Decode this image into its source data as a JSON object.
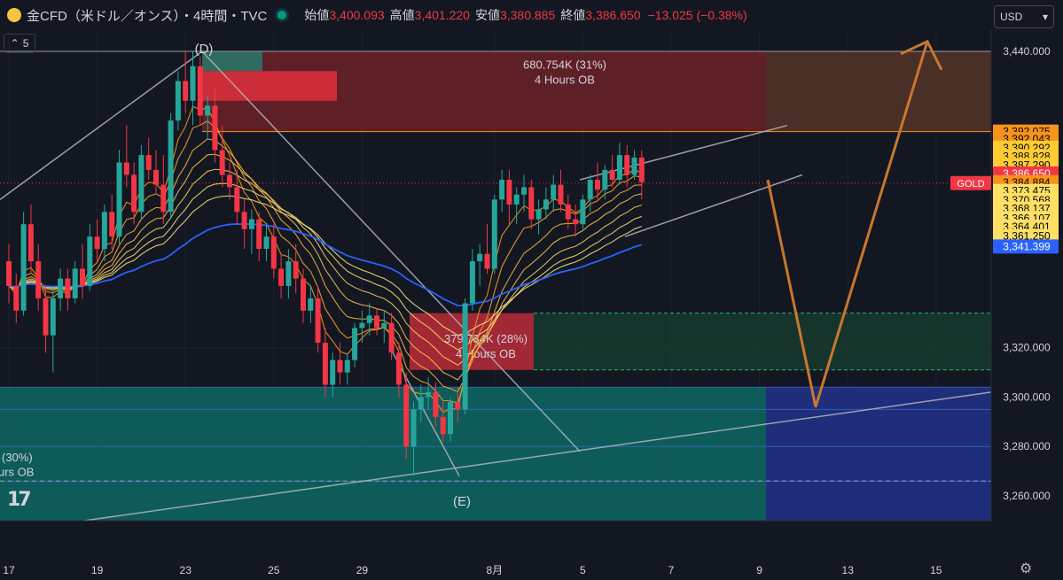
{
  "header": {
    "title": "金CFD（米ドル／オンス）・4時間・TVC",
    "open_label": "始値",
    "open": "3,400.093",
    "high_label": "高値",
    "high": "3,401.220",
    "low_label": "安値",
    "low": "3,380.885",
    "close_label": "終値",
    "close": "3,386.650",
    "change": "−13.025 (−0.38%)"
  },
  "currency_button": "USD",
  "indicator_collapse": "5",
  "symbol_tag": "GOLD",
  "colors": {
    "up": "#26a69a",
    "down": "#f23645",
    "background": "#131722",
    "grid": "#1e222d",
    "ma200": "#2962ff",
    "ema": "#f5c542",
    "projection": "#c8772d"
  },
  "chart_data": {
    "type": "candlestick",
    "timeframe": "4時間",
    "y_range": [
      3245,
      3452
    ],
    "y_ticks": [
      3440,
      3320,
      3300,
      3280,
      3260
    ],
    "x_ticks": [
      {
        "label": "17",
        "t": 0
      },
      {
        "label": "19",
        "t": 12
      },
      {
        "label": "23",
        "t": 24
      },
      {
        "label": "25",
        "t": 36
      },
      {
        "label": "29",
        "t": 48
      },
      {
        "label": "8月",
        "t": 66
      },
      {
        "label": "5",
        "t": 78
      },
      {
        "label": "7",
        "t": 90
      },
      {
        "label": "9",
        "t": 102
      },
      {
        "label": "13",
        "t": 114
      },
      {
        "label": "15",
        "t": 126
      }
    ],
    "price_labels": [
      {
        "text": "3,440.000",
        "price": 3440,
        "bg": "",
        "fg": "#d1d4dc"
      },
      {
        "text": "3,392.075",
        "price": 3407.5,
        "bg": "#f7931a",
        "fg": "#000000"
      },
      {
        "text": "3,392.043",
        "price": 3404.5,
        "bg": "#f7931a",
        "fg": "#000000"
      },
      {
        "text": "3,390.292",
        "price": 3401.0,
        "bg": "#ffcc33",
        "fg": "#000000"
      },
      {
        "text": "3,388.828",
        "price": 3397.5,
        "bg": "#ffcc33",
        "fg": "#000000"
      },
      {
        "text": "3,387.290",
        "price": 3394.0,
        "bg": "#ffcc33",
        "fg": "#000000"
      },
      {
        "text": "3,386.650",
        "price": 3390.5,
        "bg": "#f23645",
        "fg": "#ffffff"
      },
      {
        "text": "3,384.884",
        "price": 3387.0,
        "bg": "#f7931a",
        "fg": "#000000"
      },
      {
        "text": "3,373.475",
        "price": 3383.5,
        "bg": "#ffe066",
        "fg": "#000000"
      },
      {
        "text": "3,370.568",
        "price": 3379.8,
        "bg": "#ffe066",
        "fg": "#000000"
      },
      {
        "text": "3,368.137",
        "price": 3376.3,
        "bg": "#ffe066",
        "fg": "#000000"
      },
      {
        "text": "3,366.107",
        "price": 3372.5,
        "bg": "#ffe066",
        "fg": "#000000"
      },
      {
        "text": "3,364.401",
        "price": 3369.0,
        "bg": "#ffe066",
        "fg": "#000000"
      },
      {
        "text": "3,361.250",
        "price": 3365.2,
        "bg": "#ffe066",
        "fg": "#000000"
      },
      {
        "text": "3,341.399",
        "price": 3361.0,
        "bg": "#2962ff",
        "fg": "#ffffff"
      },
      {
        "text": "3,320.000",
        "price": 3320,
        "bg": "",
        "fg": "#d1d4dc"
      },
      {
        "text": "3,300.000",
        "price": 3300,
        "bg": "",
        "fg": "#d1d4dc"
      },
      {
        "text": "3,280.000",
        "price": 3280,
        "bg": "",
        "fg": "#d1d4dc"
      },
      {
        "text": "3,260.000",
        "price": 3260,
        "bg": "",
        "fg": "#d1d4dc"
      }
    ],
    "ohlc": [
      [
        3355,
        3362,
        3338,
        3345
      ],
      [
        3345,
        3350,
        3330,
        3335
      ],
      [
        3335,
        3375,
        3333,
        3370
      ],
      [
        3370,
        3378,
        3350,
        3355
      ],
      [
        3355,
        3362,
        3335,
        3340
      ],
      [
        3340,
        3345,
        3318,
        3325
      ],
      [
        3325,
        3345,
        3310,
        3340
      ],
      [
        3340,
        3352,
        3335,
        3348
      ],
      [
        3348,
        3352,
        3335,
        3340
      ],
      [
        3340,
        3355,
        3338,
        3352
      ],
      [
        3352,
        3362,
        3340,
        3345
      ],
      [
        3345,
        3370,
        3343,
        3365
      ],
      [
        3365,
        3372,
        3355,
        3360
      ],
      [
        3360,
        3378,
        3355,
        3375
      ],
      [
        3375,
        3382,
        3360,
        3365
      ],
      [
        3365,
        3400,
        3362,
        3395
      ],
      [
        3395,
        3410,
        3385,
        3390
      ],
      [
        3390,
        3395,
        3370,
        3375
      ],
      [
        3375,
        3402,
        3372,
        3398
      ],
      [
        3398,
        3405,
        3388,
        3392
      ],
      [
        3392,
        3400,
        3382,
        3386
      ],
      [
        3386,
        3398,
        3370,
        3375
      ],
      [
        3375,
        3415,
        3372,
        3412
      ],
      [
        3412,
        3432,
        3408,
        3428
      ],
      [
        3428,
        3440,
        3415,
        3420
      ],
      [
        3420,
        3440,
        3410,
        3434
      ],
      [
        3434,
        3438,
        3410,
        3414
      ],
      [
        3414,
        3422,
        3405,
        3418
      ],
      [
        3418,
        3425,
        3395,
        3400
      ],
      [
        3400,
        3410,
        3385,
        3390
      ],
      [
        3390,
        3395,
        3380,
        3385
      ],
      [
        3385,
        3392,
        3370,
        3375
      ],
      [
        3375,
        3380,
        3360,
        3368
      ],
      [
        3368,
        3376,
        3358,
        3372
      ],
      [
        3372,
        3375,
        3355,
        3360
      ],
      [
        3360,
        3370,
        3355,
        3365
      ],
      [
        3365,
        3370,
        3348,
        3352
      ],
      [
        3352,
        3358,
        3340,
        3345
      ],
      [
        3345,
        3360,
        3340,
        3355
      ],
      [
        3355,
        3362,
        3342,
        3348
      ],
      [
        3348,
        3352,
        3330,
        3335
      ],
      [
        3335,
        3345,
        3330,
        3340
      ],
      [
        3340,
        3345,
        3318,
        3322
      ],
      [
        3322,
        3328,
        3300,
        3305
      ],
      [
        3305,
        3318,
        3300,
        3315
      ],
      [
        3315,
        3322,
        3305,
        3310
      ],
      [
        3310,
        3318,
        3305,
        3315
      ],
      [
        3315,
        3330,
        3312,
        3328
      ],
      [
        3328,
        3335,
        3322,
        3330
      ],
      [
        3330,
        3338,
        3325,
        3333
      ],
      [
        3333,
        3336,
        3325,
        3328
      ],
      [
        3328,
        3335,
        3322,
        3330
      ],
      [
        3330,
        3334,
        3315,
        3318
      ],
      [
        3318,
        3322,
        3300,
        3305
      ],
      [
        3305,
        3310,
        3275,
        3280
      ],
      [
        3280,
        3298,
        3268,
        3295
      ],
      [
        3295,
        3305,
        3290,
        3300
      ],
      [
        3300,
        3308,
        3295,
        3302
      ],
      [
        3302,
        3306,
        3288,
        3292
      ],
      [
        3292,
        3298,
        3282,
        3285
      ],
      [
        3285,
        3300,
        3282,
        3298
      ],
      [
        3298,
        3304,
        3290,
        3295
      ],
      [
        3295,
        3340,
        3293,
        3338
      ],
      [
        3338,
        3360,
        3335,
        3355
      ],
      [
        3355,
        3362,
        3345,
        3358
      ],
      [
        3358,
        3370,
        3350,
        3352
      ],
      [
        3352,
        3382,
        3350,
        3380
      ],
      [
        3380,
        3392,
        3375,
        3388
      ],
      [
        3388,
        3392,
        3370,
        3378
      ],
      [
        3378,
        3385,
        3370,
        3382
      ],
      [
        3382,
        3390,
        3375,
        3385
      ],
      [
        3385,
        3388,
        3368,
        3372
      ],
      [
        3372,
        3380,
        3366,
        3376
      ],
      [
        3376,
        3385,
        3372,
        3380
      ],
      [
        3380,
        3390,
        3375,
        3386
      ],
      [
        3386,
        3392,
        3375,
        3378
      ],
      [
        3378,
        3382,
        3368,
        3372
      ],
      [
        3372,
        3378,
        3365,
        3370
      ],
      [
        3370,
        3382,
        3368,
        3380
      ],
      [
        3380,
        3390,
        3375,
        3388
      ],
      [
        3388,
        3395,
        3380,
        3384
      ],
      [
        3384,
        3394,
        3380,
        3392
      ],
      [
        3392,
        3398,
        3385,
        3388
      ],
      [
        3388,
        3403,
        3386,
        3398
      ],
      [
        3398,
        3402,
        3385,
        3390
      ],
      [
        3390,
        3400,
        3388,
        3397
      ],
      [
        3397,
        3400,
        3380,
        3387
      ]
    ],
    "order_blocks": [
      {
        "text": "680.754K (31%)",
        "subtext": "4 Hours OB"
      },
      {
        "text": "379.734K (28%)",
        "subtext": "4 Hours OB"
      },
      {
        "text": "(30%)",
        "subtext": "urs OB"
      }
    ],
    "wave_labels": [
      "(D)",
      "(E)"
    ]
  }
}
